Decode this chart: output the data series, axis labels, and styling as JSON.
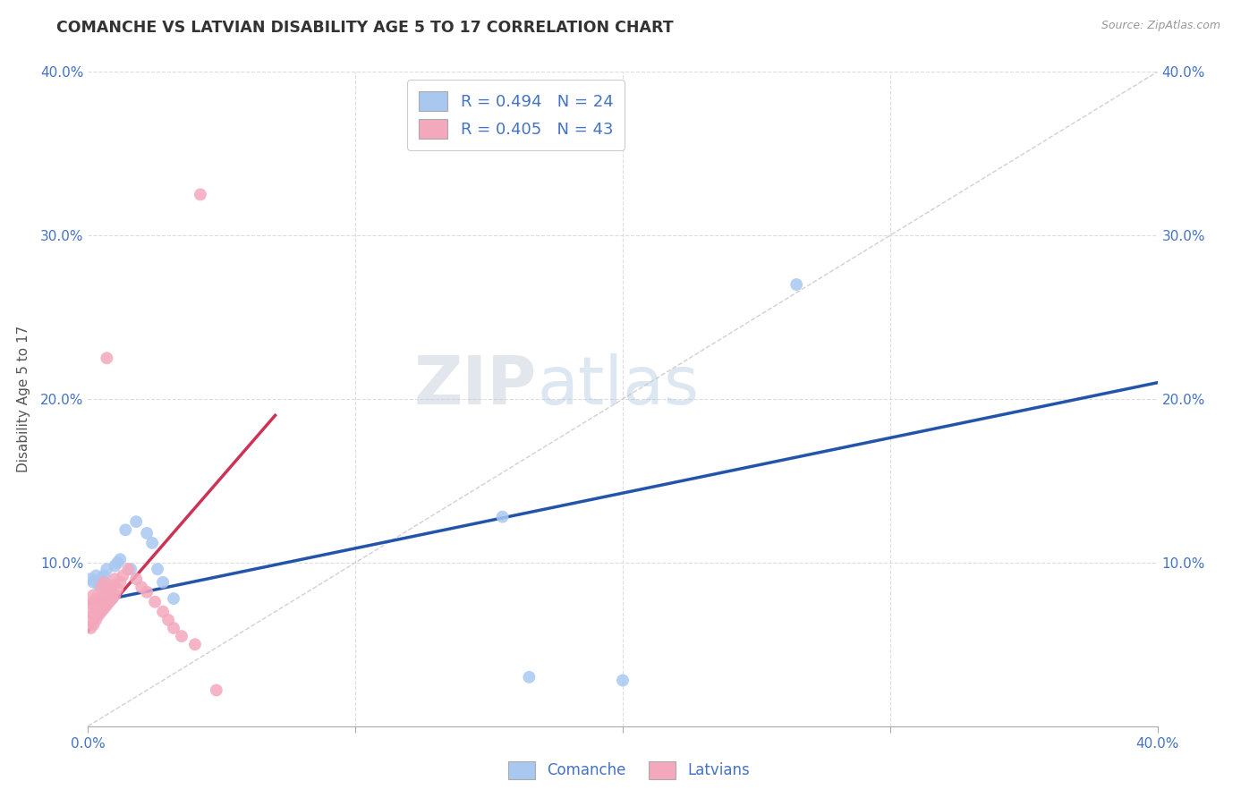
{
  "title": "COMANCHE VS LATVIAN DISABILITY AGE 5 TO 17 CORRELATION CHART",
  "source": "Source: ZipAtlas.com",
  "ylabel": "Disability Age 5 to 17",
  "xlim": [
    0.0,
    0.4
  ],
  "ylim": [
    0.0,
    0.4
  ],
  "x_ticks": [
    0.0,
    0.1,
    0.2,
    0.3,
    0.4
  ],
  "y_ticks": [
    0.1,
    0.2,
    0.3,
    0.4
  ],
  "x_tick_labels": [
    "0.0%",
    "",
    "",
    "",
    "40.0%"
  ],
  "y_tick_labels": [
    "10.0%",
    "20.0%",
    "30.0%",
    "40.0%"
  ],
  "right_y_tick_labels": [
    "10.0%",
    "20.0%",
    "30.0%",
    "40.0%"
  ],
  "comanche_color": "#A8C8F0",
  "latvian_color": "#F4A8BC",
  "comanche_line_color": "#2255AA",
  "latvian_line_color": "#CC3355",
  "diagonal_color": "#CCCCCC",
  "R_comanche": 0.494,
  "N_comanche": 24,
  "R_latvian": 0.405,
  "N_latvian": 43,
  "watermark_zip": "ZIP",
  "watermark_atlas": "atlas",
  "background_color": "#FFFFFF",
  "grid_color": "#DDDDDD",
  "comanche_x": [
    0.001,
    0.002,
    0.003,
    0.004,
    0.005,
    0.006,
    0.007,
    0.008,
    0.009,
    0.01,
    0.011,
    0.012,
    0.014,
    0.016,
    0.018,
    0.022,
    0.024,
    0.026,
    0.028,
    0.032,
    0.155,
    0.165,
    0.2,
    0.265
  ],
  "comanche_y": [
    0.09,
    0.088,
    0.092,
    0.086,
    0.09,
    0.092,
    0.096,
    0.082,
    0.078,
    0.098,
    0.1,
    0.102,
    0.12,
    0.096,
    0.125,
    0.118,
    0.112,
    0.096,
    0.088,
    0.078,
    0.128,
    0.03,
    0.028,
    0.27
  ],
  "latvian_x": [
    0.001,
    0.001,
    0.001,
    0.001,
    0.002,
    0.002,
    0.002,
    0.002,
    0.003,
    0.003,
    0.003,
    0.004,
    0.004,
    0.005,
    0.005,
    0.005,
    0.006,
    0.006,
    0.006,
    0.007,
    0.007,
    0.007,
    0.008,
    0.008,
    0.009,
    0.009,
    0.01,
    0.01,
    0.011,
    0.012,
    0.013,
    0.015,
    0.018,
    0.02,
    0.022,
    0.025,
    0.028,
    0.03,
    0.032,
    0.035,
    0.04,
    0.042,
    0.048
  ],
  "latvian_y": [
    0.06,
    0.065,
    0.07,
    0.075,
    0.062,
    0.068,
    0.075,
    0.08,
    0.065,
    0.072,
    0.078,
    0.068,
    0.076,
    0.07,
    0.078,
    0.085,
    0.072,
    0.08,
    0.088,
    0.074,
    0.082,
    0.225,
    0.076,
    0.084,
    0.078,
    0.086,
    0.08,
    0.09,
    0.084,
    0.088,
    0.092,
    0.096,
    0.09,
    0.085,
    0.082,
    0.076,
    0.07,
    0.065,
    0.06,
    0.055,
    0.05,
    0.325,
    0.022
  ]
}
